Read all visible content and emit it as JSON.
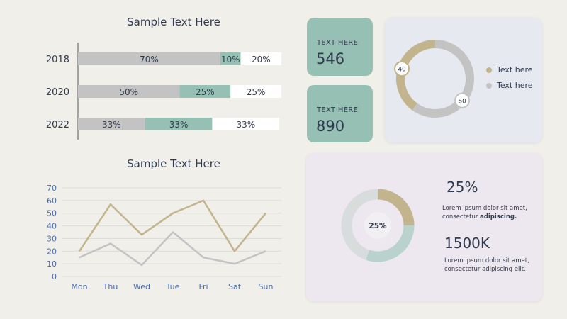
{
  "bar_chart": {
    "title": "Sample Text Here"
  },
  "line_chart": {
    "title": "Sample Text Here"
  },
  "stats": [
    {
      "label": "TEXT HERE",
      "value": "546"
    },
    {
      "label": "TEXT HERE",
      "value": "890"
    }
  ],
  "donut_legend": [
    {
      "label": "Text here",
      "color": "#c2b48c"
    },
    {
      "label": "Text here",
      "color": "#c3c3c3"
    }
  ],
  "info": {
    "pct_value": "25%",
    "pct_desc_line1": "Lorem ipsum dolor sit amet,",
    "pct_desc_line2_plain": "consectetur ",
    "pct_desc_line2_bold": "adipiscing.",
    "big_value": "1500K",
    "big_desc_line1": "Lorem ipsum dolor sit amet,",
    "big_desc_line2": "consectetur adipiscing elit."
  },
  "colors": {
    "tan": "#c2b48c",
    "teal": "#96c0b3",
    "gray": "#c3c3c3",
    "white": "#ffffff"
  },
  "chart_data": [
    {
      "type": "bar",
      "orientation": "horizontal-stacked",
      "title": "Sample Text Here",
      "categories": [
        "2018",
        "2020",
        "2022"
      ],
      "series": [
        {
          "values": [
            70,
            50,
            33
          ],
          "labels": [
            "70%",
            "50%",
            "33%"
          ],
          "color": "#c3c3c3"
        },
        {
          "values": [
            10,
            25,
            33
          ],
          "labels": [
            "10%",
            "25%",
            "33%"
          ],
          "color": "#96c0b3"
        },
        {
          "values": [
            20,
            25,
            33
          ],
          "labels": [
            "20%",
            "25%",
            "33%"
          ],
          "color": "#ffffff"
        }
      ]
    },
    {
      "type": "line",
      "title": "Sample Text Here",
      "categories": [
        "Mon",
        "Thu",
        "Wed",
        "Tue",
        "Fri",
        "Sat",
        "Sun"
      ],
      "ylim": [
        0,
        70
      ],
      "yticks": [
        0,
        10,
        20,
        30,
        40,
        50,
        60,
        70
      ],
      "series": [
        {
          "values": [
            20,
            57,
            33,
            50,
            60,
            20,
            50
          ],
          "color": "#c2b48c"
        },
        {
          "values": [
            15,
            26,
            9,
            35,
            15,
            10,
            20
          ],
          "color": "#c3c3c3"
        }
      ]
    },
    {
      "type": "pie",
      "donut": true,
      "values": [
        40,
        60
      ],
      "labels": [
        "40",
        "60"
      ],
      "colors": [
        "#c2b48c",
        "#c3c3c3"
      ],
      "legend": "right"
    },
    {
      "type": "pie",
      "donut": true,
      "values": [
        25,
        75
      ],
      "center_label": "25%",
      "colors": [
        "#c2b48c",
        "#d8dcdc"
      ]
    }
  ]
}
